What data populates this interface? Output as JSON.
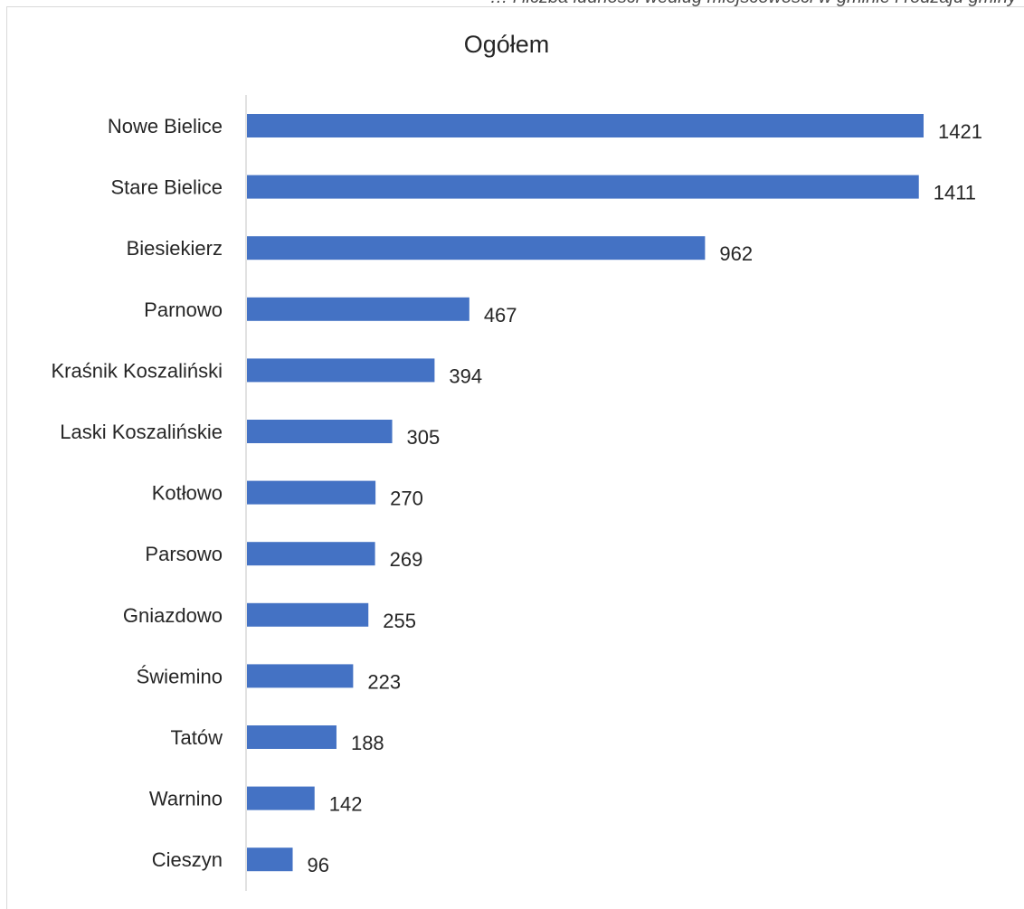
{
  "header": {
    "clipped_text": "… i liczba ludności według miejscowości w gminie i rodzaju gminy"
  },
  "colors": {
    "bar": "#4472c4",
    "axis": "#d9d9d9",
    "text": "#262626"
  },
  "chart_data": {
    "type": "bar",
    "orientation": "horizontal",
    "title": "Ogółem",
    "xlabel": "",
    "ylabel": "",
    "grid": false,
    "legend": "none",
    "xlim": [
      0,
      1500
    ],
    "categories": [
      "Nowe Bielice",
      "Stare Bielice",
      "Biesiekierz",
      "Parnowo",
      "Kraśnik Koszaliński",
      "Laski Koszalińskie",
      "Kotłowo",
      "Parsowo",
      "Gniazdowo",
      "Świemino",
      "Tatów",
      "Warnino",
      "Cieszyn"
    ],
    "values": [
      1421,
      1411,
      962,
      467,
      394,
      305,
      270,
      269,
      255,
      223,
      188,
      142,
      96
    ],
    "data_labels": [
      "1421",
      "1411",
      "962",
      "467",
      "394",
      "305",
      "270",
      "269",
      "255",
      "223",
      "188",
      "142",
      "96"
    ]
  }
}
